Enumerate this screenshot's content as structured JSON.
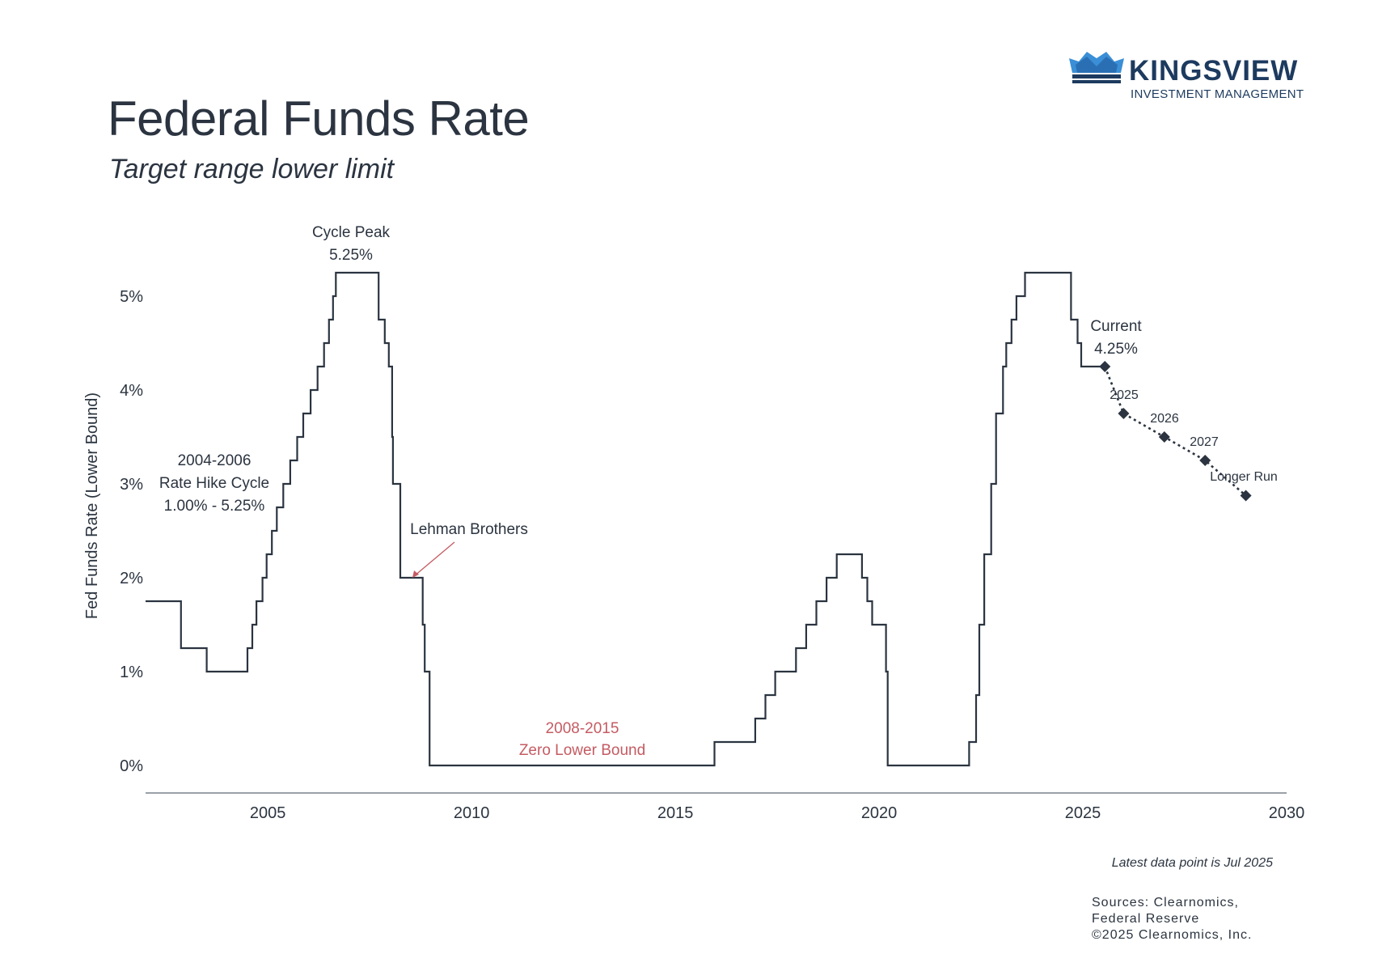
{
  "header": {
    "title": "Federal Funds Rate",
    "subtitle": "Target range lower limit"
  },
  "logo": {
    "name": "KINGSVIEW",
    "tagline": "INVESTMENT MANAGEMENT",
    "colors": {
      "dark": "#1d3a5f",
      "light": "#3a8fd6"
    }
  },
  "footer": {
    "latest_note": "Latest data point is Jul 2025",
    "sources_line1": "Sources: Clearnomics,",
    "sources_line2": "Federal Reserve",
    "copyright": "©2025 Clearnomics, Inc."
  },
  "chart_data": {
    "type": "line",
    "title": "Federal Funds Rate",
    "subtitle": "Target range lower limit",
    "ylabel": "Fed Funds Rate (Lower Bound)",
    "xlabel": "",
    "xlim": [
      2002.0,
      2030.0
    ],
    "ylim": [
      0,
      5.25
    ],
    "x_ticks": [
      2005,
      2010,
      2015,
      2020,
      2025,
      2030
    ],
    "y_ticks": [
      0,
      1,
      2,
      3,
      4,
      5
    ],
    "y_tick_labels": [
      "0%",
      "1%",
      "2%",
      "3%",
      "4%",
      "5%"
    ],
    "grid": false,
    "colors": {
      "line": "#2b3440",
      "projection": "#2b3440",
      "annotation_red": "#c45b62"
    },
    "series": [
      {
        "style": "step",
        "points": [
          [
            2002.0,
            1.75
          ],
          [
            2002.87,
            1.25
          ],
          [
            2003.5,
            1.0
          ],
          [
            2004.5,
            1.25
          ],
          [
            2004.62,
            1.5
          ],
          [
            2004.72,
            1.75
          ],
          [
            2004.87,
            2.0
          ],
          [
            2004.97,
            2.25
          ],
          [
            2005.1,
            2.5
          ],
          [
            2005.22,
            2.75
          ],
          [
            2005.38,
            3.0
          ],
          [
            2005.55,
            3.25
          ],
          [
            2005.72,
            3.5
          ],
          [
            2005.87,
            3.75
          ],
          [
            2006.05,
            4.0
          ],
          [
            2006.22,
            4.25
          ],
          [
            2006.38,
            4.5
          ],
          [
            2006.5,
            4.75
          ],
          [
            2006.6,
            5.0
          ],
          [
            2006.67,
            5.25
          ],
          [
            2007.72,
            4.75
          ],
          [
            2007.87,
            4.5
          ],
          [
            2007.97,
            4.25
          ],
          [
            2008.05,
            3.5
          ],
          [
            2008.07,
            3.0
          ],
          [
            2008.25,
            2.0
          ],
          [
            2008.8,
            1.5
          ],
          [
            2008.85,
            1.0
          ],
          [
            2008.97,
            0.0
          ],
          [
            2015.96,
            0.25
          ],
          [
            2016.96,
            0.5
          ],
          [
            2017.21,
            0.75
          ],
          [
            2017.45,
            1.0
          ],
          [
            2017.96,
            1.25
          ],
          [
            2018.21,
            1.5
          ],
          [
            2018.46,
            1.75
          ],
          [
            2018.71,
            2.0
          ],
          [
            2018.96,
            2.25
          ],
          [
            2019.58,
            2.0
          ],
          [
            2019.71,
            1.75
          ],
          [
            2019.83,
            1.5
          ],
          [
            2020.17,
            1.0
          ],
          [
            2020.21,
            0.0
          ],
          [
            2022.21,
            0.25
          ],
          [
            2022.38,
            0.75
          ],
          [
            2022.46,
            1.5
          ],
          [
            2022.58,
            2.25
          ],
          [
            2022.75,
            3.0
          ],
          [
            2022.87,
            3.75
          ],
          [
            2023.04,
            4.25
          ],
          [
            2023.12,
            4.5
          ],
          [
            2023.25,
            4.75
          ],
          [
            2023.37,
            5.0
          ],
          [
            2023.58,
            5.25
          ],
          [
            2024.71,
            4.75
          ],
          [
            2024.87,
            4.5
          ],
          [
            2024.96,
            4.25
          ],
          [
            2025.54,
            4.25
          ]
        ]
      },
      {
        "style": "dotted",
        "points": [
          [
            2025.54,
            4.25
          ],
          [
            2026.0,
            3.75
          ],
          [
            2027.0,
            3.5
          ],
          [
            2028.0,
            3.25
          ],
          [
            2029.0,
            2.875
          ]
        ]
      }
    ],
    "projection_labels": [
      "2025",
      "2026",
      "2027",
      "Longer Run"
    ],
    "annotations": {
      "cycle_peak_line1": "Cycle Peak",
      "cycle_peak_line2": "5.25%",
      "hike_line1": "2004-2006",
      "hike_line2": "Rate Hike Cycle",
      "hike_line3": "1.00% - 5.25%",
      "lehman": "Lehman Brothers",
      "zlb_line1": "2008-2015",
      "zlb_line2": "Zero Lower Bound",
      "current_line1": "Current",
      "current_line2": "4.25%"
    }
  }
}
